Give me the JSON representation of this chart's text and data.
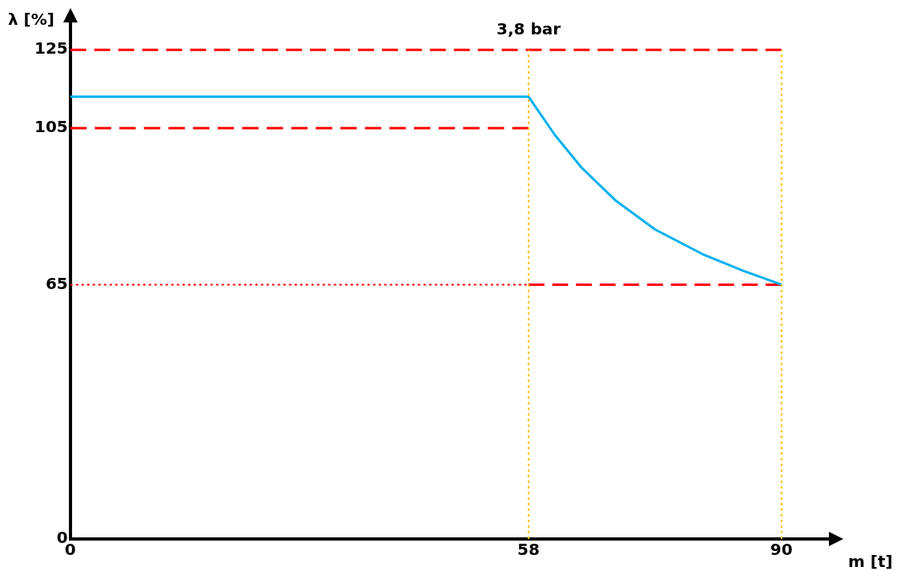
{
  "chart_data": {
    "type": "line",
    "xlabel": "m [t]",
    "ylabel": "λ [%]",
    "xlim": [
      0,
      96
    ],
    "ylim": [
      0,
      132
    ],
    "xticks": [
      0,
      58,
      90
    ],
    "yticks": [
      0,
      65,
      105,
      125
    ],
    "grid": false,
    "legend": false,
    "marker": "none",
    "series": [
      {
        "color": "#00b0f0",
        "line_style": "solid",
        "x": [
          0,
          58,
          61.3,
          64.7,
          69,
          74,
          80,
          85.1,
          90
        ],
        "values": [
          113,
          113,
          103.3,
          94.9,
          86.5,
          79.1,
          72.8,
          68.6,
          65
        ]
      },
      {
        "color": "#ff0000",
        "line_style": "dashed",
        "x": [
          0,
          90
        ],
        "values": [
          125,
          125
        ]
      },
      {
        "color": "#ff0000",
        "line_style": "dashed",
        "x": [
          0,
          58
        ],
        "values": [
          105,
          105
        ]
      },
      {
        "color": "#ff0000",
        "line_style": "dotted",
        "x": [
          0,
          58
        ],
        "values": [
          65,
          65
        ]
      },
      {
        "color": "#ff0000",
        "line_style": "dashed",
        "x": [
          58,
          90
        ],
        "values": [
          65,
          65
        ]
      }
    ],
    "ref_lines": [
      {
        "axis": "x",
        "value": 58,
        "label": "3,8 bar",
        "color": "#ffc000",
        "line_style": "dotted"
      },
      {
        "axis": "x",
        "value": 90,
        "label": null,
        "color": "#ffc000",
        "line_style": "dotted"
      }
    ]
  }
}
